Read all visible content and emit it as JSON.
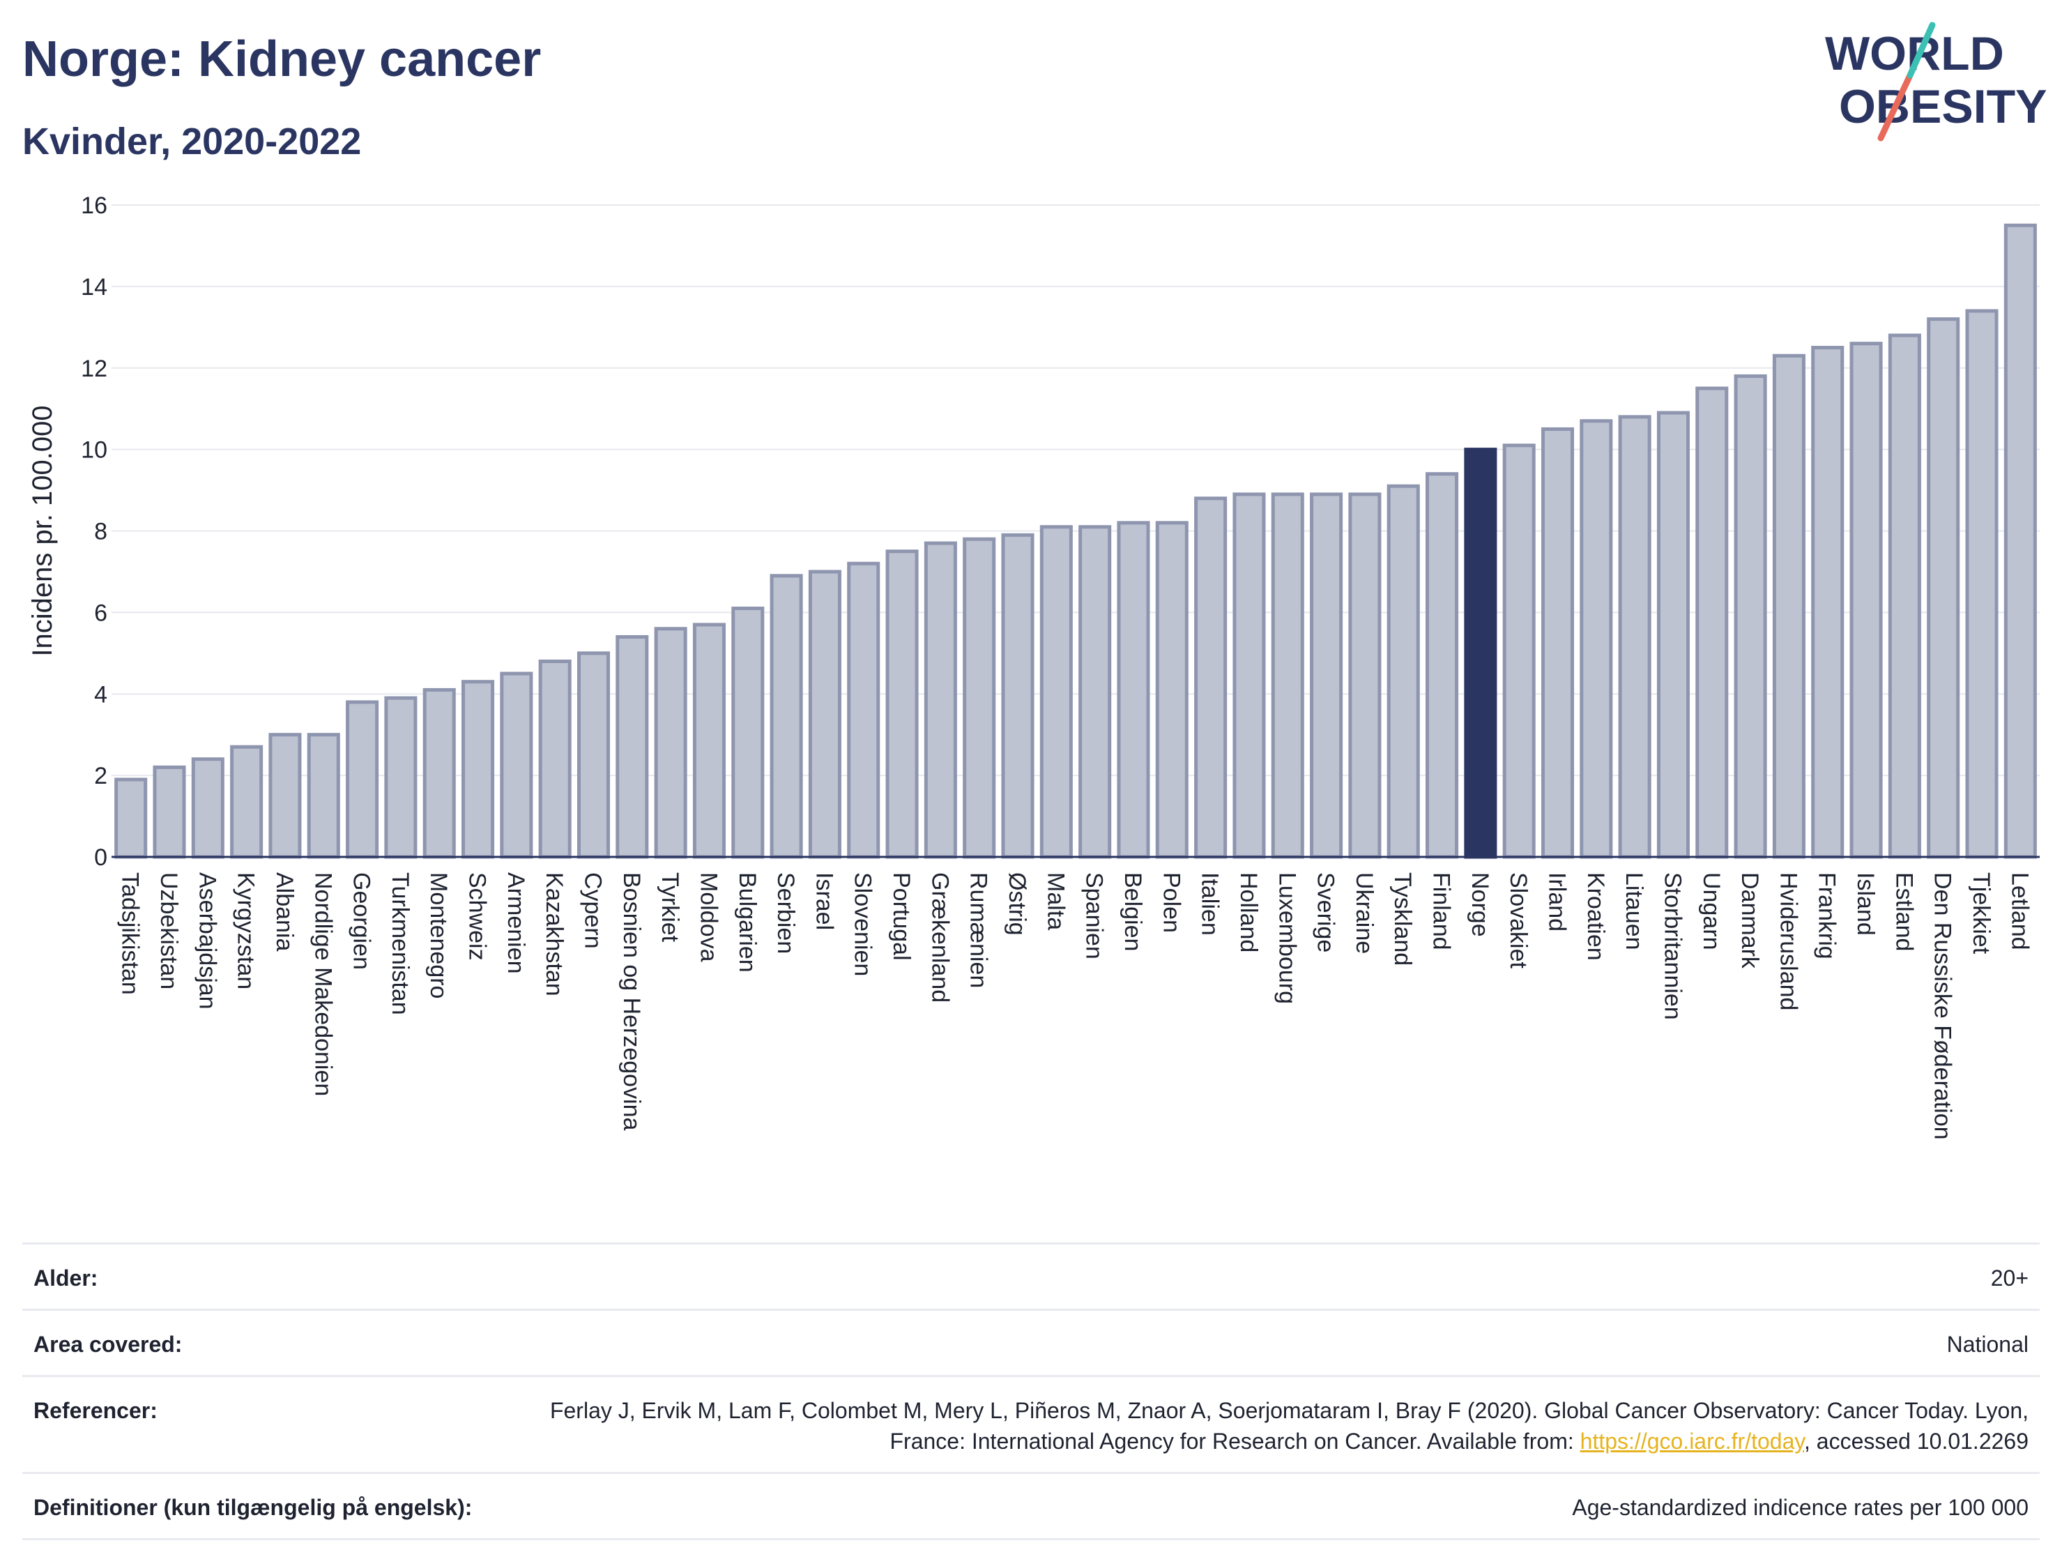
{
  "header": {
    "title": "Norge: Kidney cancer",
    "subtitle": "Kvinder, 2020-2022"
  },
  "logo": {
    "line1": "WORLD",
    "line2": "OBESITY"
  },
  "colors": {
    "bar_fill": "#bec3d2",
    "bar_stroke": "#8e95ae",
    "highlight": "#2b3562",
    "title": "#2b3562",
    "link": "#e6b31e",
    "logo_teal": "#3cc0b4",
    "logo_red": "#e86a5a"
  },
  "chart_data": {
    "type": "bar",
    "ylabel": "Incidens pr. 100.000",
    "xlabel": "",
    "ylim": [
      0,
      16
    ],
    "yticks": [
      0,
      2,
      4,
      6,
      8,
      10,
      12,
      14,
      16
    ],
    "grid": true,
    "highlight": "Norge",
    "categories": [
      "Tadsjikistan",
      "Uzbekistan",
      "Aserbajdsjan",
      "Kyrgyzstan",
      "Albania",
      "Nordlige Makedonien",
      "Georgien",
      "Turkmenistan",
      "Montenegro",
      "Schweiz",
      "Armenien",
      "Kazakhstan",
      "Cypern",
      "Bosnien og Herzegovina",
      "Tyrkiet",
      "Moldova",
      "Bulgarien",
      "Serbien",
      "Israel",
      "Slovenien",
      "Portugal",
      "Grækenland",
      "Rumænien",
      "Østrig",
      "Malta",
      "Spanien",
      "Belgien",
      "Polen",
      "Italien",
      "Holland",
      "Luxembourg",
      "Sverige",
      "Ukraine",
      "Tyskland",
      "Finland",
      "Norge",
      "Slovakiet",
      "Irland",
      "Kroatien",
      "Litauen",
      "Storbritannien",
      "Ungarn",
      "Danmark",
      "Hviderusland",
      "Frankrig",
      "Island",
      "Estland",
      "Den Russiske Føderation",
      "Tjekkiet",
      "Letland"
    ],
    "values": [
      1.9,
      2.2,
      2.4,
      2.7,
      3.0,
      3.0,
      3.8,
      3.9,
      4.1,
      4.3,
      4.5,
      4.8,
      5.0,
      5.4,
      5.6,
      5.7,
      6.1,
      6.9,
      7.0,
      7.2,
      7.5,
      7.7,
      7.8,
      7.9,
      8.1,
      8.1,
      8.2,
      8.2,
      8.8,
      8.9,
      8.9,
      8.9,
      8.9,
      9.1,
      9.4,
      10.0,
      10.1,
      10.5,
      10.7,
      10.8,
      10.9,
      11.5,
      11.8,
      12.3,
      12.5,
      12.6,
      12.8,
      13.2,
      13.4,
      15.5
    ]
  },
  "info": [
    {
      "label": "Alder:",
      "value": "20+"
    },
    {
      "label": "Area covered:",
      "value": "National"
    },
    {
      "label": "Referencer:",
      "value_pre": "Ferlay J, Ervik M, Lam F, Colombet M, Mery L, Piñeros M, Znaor A, Soerjomataram I, Bray F (2020). Global Cancer Observatory: Cancer Today. Lyon, France: International Agency for Research on Cancer. Available from: ",
      "link": "https://gco.iarc.fr/today",
      "value_post": ", accessed 10.01.2269"
    },
    {
      "label": "Definitioner (kun tilgængelig på engelsk):",
      "value": "Age-standardized indicence rates per 100 000"
    }
  ]
}
